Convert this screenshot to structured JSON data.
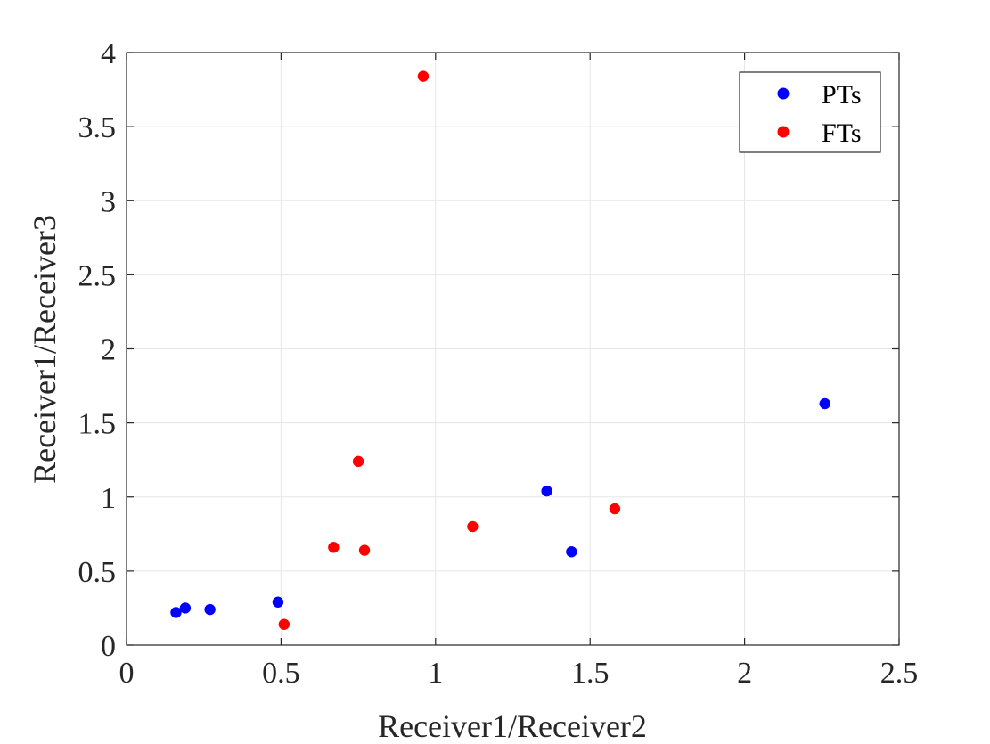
{
  "chart_data": {
    "type": "scatter",
    "title": "",
    "xlabel": "Receiver1/Receiver2",
    "ylabel": "Receiver1/Receiver3",
    "xlim": [
      0,
      2.5
    ],
    "ylim": [
      0,
      4
    ],
    "xticks": [
      0,
      0.5,
      1,
      1.5,
      2,
      2.5
    ],
    "xtick_labels": [
      "0",
      "0.5",
      "1",
      "1.5",
      "2",
      "2.5"
    ],
    "yticks": [
      0,
      0.5,
      1,
      1.5,
      2,
      2.5,
      3,
      3.5,
      4
    ],
    "ytick_labels": [
      "0",
      "0.5",
      "1",
      "1.5",
      "2",
      "2.5",
      "3",
      "3.5",
      "4"
    ],
    "grid": true,
    "legend_position": "top-right",
    "series": [
      {
        "name": "PTs",
        "color": "#0000ff",
        "points": [
          {
            "x": 0.16,
            "y": 0.22
          },
          {
            "x": 0.19,
            "y": 0.25
          },
          {
            "x": 0.27,
            "y": 0.24
          },
          {
            "x": 0.49,
            "y": 0.29
          },
          {
            "x": 1.36,
            "y": 1.04
          },
          {
            "x": 1.44,
            "y": 0.63
          },
          {
            "x": 2.26,
            "y": 1.63
          }
        ]
      },
      {
        "name": "FTs",
        "color": "#ff0000",
        "points": [
          {
            "x": 0.51,
            "y": 0.14
          },
          {
            "x": 0.67,
            "y": 0.66
          },
          {
            "x": 0.75,
            "y": 1.24
          },
          {
            "x": 0.77,
            "y": 0.64
          },
          {
            "x": 0.96,
            "y": 3.84
          },
          {
            "x": 1.12,
            "y": 0.8
          },
          {
            "x": 1.58,
            "y": 0.92
          }
        ]
      }
    ]
  }
}
